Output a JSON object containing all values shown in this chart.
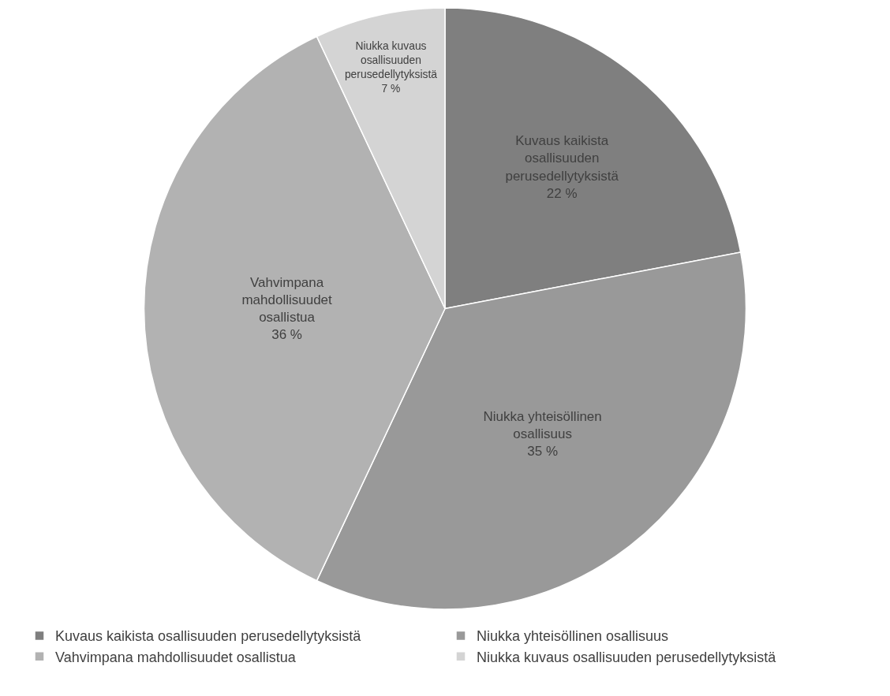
{
  "chart_data": {
    "type": "pie",
    "categories": [
      "Kuvaus kaikista osallisuuden perusedellytyksistä",
      "Niukka yhteisöllinen osallisuus",
      "Vahvimpana mahdollisuudet osallistua",
      "Niukka kuvaus osallisuuden perusedellytyksistä"
    ],
    "values": [
      22,
      35,
      36,
      7
    ],
    "value_labels": [
      "22 %",
      "35 %",
      "36 %",
      "7 %"
    ],
    "colors": [
      "#7f7f7f",
      "#999999",
      "#b2b2b2",
      "#d4d4d4"
    ],
    "legend": "bottom"
  }
}
